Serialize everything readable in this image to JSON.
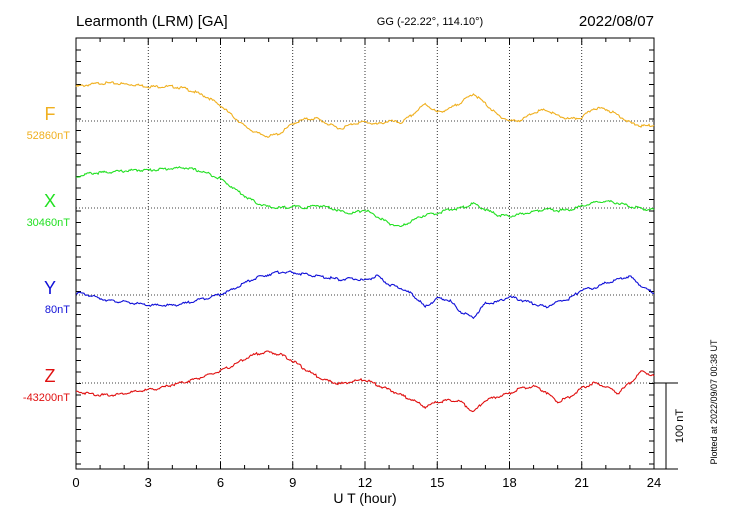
{
  "header": {
    "station": "Learmonth (LRM)  [GA]",
    "coords": "GG (-22.22°, 114.10°)",
    "date": "2022/08/07"
  },
  "side_note": "Plotted at 2022/09/07 00:38 UT",
  "chart_data": {
    "type": "line",
    "xlabel": "U T (hour)",
    "xlim": [
      0,
      24
    ],
    "x_ticks": [
      0,
      3,
      6,
      9,
      12,
      15,
      18,
      21,
      24
    ],
    "x_tick_labels": [
      "0",
      "3",
      "6",
      "9",
      "12",
      "15",
      "18",
      "21",
      "24"
    ],
    "scale_bar": {
      "label": "100 nT",
      "value_nT": 100
    },
    "series": [
      {
        "name": "F",
        "baseline_label": "52860nT",
        "baseline_nT": 52860,
        "color": "#f0b020",
        "x": [
          0,
          0.5,
          1,
          1.5,
          2,
          2.5,
          3,
          3.5,
          4,
          4.5,
          5,
          5.5,
          6,
          6.5,
          7,
          7.5,
          8,
          8.5,
          9,
          9.5,
          10,
          10.5,
          11,
          11.5,
          12,
          12.5,
          13,
          13.5,
          14,
          14.5,
          15,
          15.5,
          16,
          16.5,
          17,
          17.5,
          18,
          18.5,
          19,
          19.5,
          20,
          20.5,
          21,
          21.5,
          22,
          22.5,
          23,
          23.5,
          24
        ],
        "values": [
          40,
          42,
          44,
          44,
          43,
          42,
          40,
          40,
          40,
          38,
          33,
          27,
          18,
          6,
          -6,
          -14,
          -18,
          -14,
          -3,
          2,
          3,
          -4,
          -9,
          -3,
          -1,
          -4,
          0,
          -2,
          8,
          20,
          10,
          14,
          22,
          32,
          20,
          7,
          0,
          1,
          10,
          13,
          6,
          2,
          4,
          15,
          14,
          7,
          -2,
          -6,
          -5
        ]
      },
      {
        "name": "X",
        "baseline_label": "30460nT",
        "baseline_nT": 30460,
        "color": "#22e022",
        "x": [
          0,
          0.5,
          1,
          1.5,
          2,
          2.5,
          3,
          3.5,
          4,
          4.5,
          5,
          5.5,
          6,
          6.5,
          7,
          7.5,
          8,
          8.5,
          9,
          9.5,
          10,
          10.5,
          11,
          11.5,
          12,
          12.5,
          13,
          13.5,
          14,
          14.5,
          15,
          15.5,
          16,
          16.5,
          17,
          17.5,
          18,
          18.5,
          19,
          19.5,
          20,
          20.5,
          21,
          21.5,
          22,
          22.5,
          23,
          23.5,
          24
        ],
        "values": [
          36,
          40,
          41,
          42,
          43,
          44,
          44,
          45,
          46,
          47,
          44,
          40,
          34,
          24,
          14,
          6,
          1,
          0,
          2,
          0,
          3,
          1,
          -4,
          -6,
          -2,
          -10,
          -18,
          -22,
          -14,
          -8,
          -6,
          -2,
          0,
          5,
          -2,
          -8,
          -10,
          -7,
          -4,
          -1,
          -3,
          -2,
          2,
          6,
          8,
          6,
          2,
          -1,
          -2
        ]
      },
      {
        "name": "Y",
        "baseline_label": "80nT",
        "baseline_nT": 80,
        "color": "#1010d8",
        "x": [
          0,
          0.5,
          1,
          1.5,
          2,
          2.5,
          3,
          3.5,
          4,
          4.5,
          5,
          5.5,
          6,
          6.5,
          7,
          7.5,
          8,
          8.5,
          9,
          9.5,
          10,
          10.5,
          11,
          11.5,
          12,
          12.5,
          13,
          13.5,
          14,
          14.5,
          15,
          15.5,
          16,
          16.5,
          17,
          17.5,
          18,
          18.5,
          19,
          19.5,
          20,
          20.5,
          21,
          21.5,
          22,
          22.5,
          23,
          23.5,
          24
        ],
        "values": [
          3,
          0,
          -4,
          -7,
          -8,
          -10,
          -12,
          -12,
          -12,
          -10,
          -6,
          -3,
          1,
          6,
          14,
          20,
          24,
          27,
          26,
          24,
          22,
          20,
          18,
          19,
          17,
          22,
          12,
          8,
          0,
          -14,
          -4,
          -6,
          -20,
          -26,
          -10,
          -8,
          -2,
          -6,
          -10,
          -14,
          -8,
          -4,
          6,
          8,
          14,
          18,
          22,
          10,
          2
        ]
      },
      {
        "name": "Z",
        "baseline_label": "-43200nT",
        "baseline_nT": -43200,
        "color": "#e01010",
        "x": [
          0,
          0.5,
          1,
          1.5,
          2,
          2.5,
          3,
          3.5,
          4,
          4.5,
          5,
          5.5,
          6,
          6.5,
          7,
          7.5,
          8,
          8.5,
          9,
          9.5,
          10,
          10.5,
          11,
          11.5,
          12,
          12.5,
          13,
          13.5,
          14,
          14.5,
          15,
          15.5,
          16,
          16.5,
          17,
          17.5,
          18,
          18.5,
          19,
          19.5,
          20,
          20.5,
          21,
          21.5,
          22,
          22.5,
          23,
          23.5,
          24
        ],
        "values": [
          -10,
          -12,
          -14,
          -14,
          -12,
          -10,
          -8,
          -6,
          -2,
          1,
          5,
          9,
          14,
          20,
          28,
          34,
          36,
          33,
          26,
          16,
          8,
          2,
          -1,
          2,
          4,
          -2,
          -8,
          -14,
          -20,
          -28,
          -22,
          -20,
          -22,
          -34,
          -20,
          -16,
          -12,
          -6,
          -4,
          -10,
          -22,
          -16,
          -6,
          0,
          -4,
          -12,
          0,
          14,
          8
        ]
      }
    ]
  }
}
